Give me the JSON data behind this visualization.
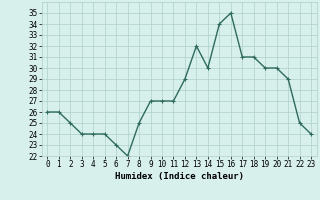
{
  "xlabel": "Humidex (Indice chaleur)",
  "ylabel": "",
  "x": [
    0,
    1,
    2,
    3,
    4,
    5,
    6,
    7,
    8,
    9,
    10,
    11,
    12,
    13,
    14,
    15,
    16,
    17,
    18,
    19,
    20,
    21,
    22,
    23
  ],
  "y": [
    26,
    26,
    25,
    24,
    24,
    24,
    23,
    22,
    25,
    27,
    27,
    27,
    29,
    32,
    30,
    34,
    35,
    31,
    31,
    30,
    30,
    29,
    25,
    24
  ],
  "line_color": "#2e6b5e",
  "marker": "+",
  "marker_size": 3,
  "bg_color": "#d8f0ec",
  "grid_color": "#aed0ca",
  "ylim": [
    22,
    36
  ],
  "xlim": [
    -0.5,
    23.5
  ],
  "yticks": [
    22,
    23,
    24,
    25,
    26,
    27,
    28,
    29,
    30,
    31,
    32,
    33,
    34,
    35
  ],
  "xticks": [
    0,
    1,
    2,
    3,
    4,
    5,
    6,
    7,
    8,
    9,
    10,
    11,
    12,
    13,
    14,
    15,
    16,
    17,
    18,
    19,
    20,
    21,
    22,
    23
  ],
  "tick_fontsize": 5.5,
  "xlabel_fontsize": 6.5,
  "linewidth": 1.0
}
